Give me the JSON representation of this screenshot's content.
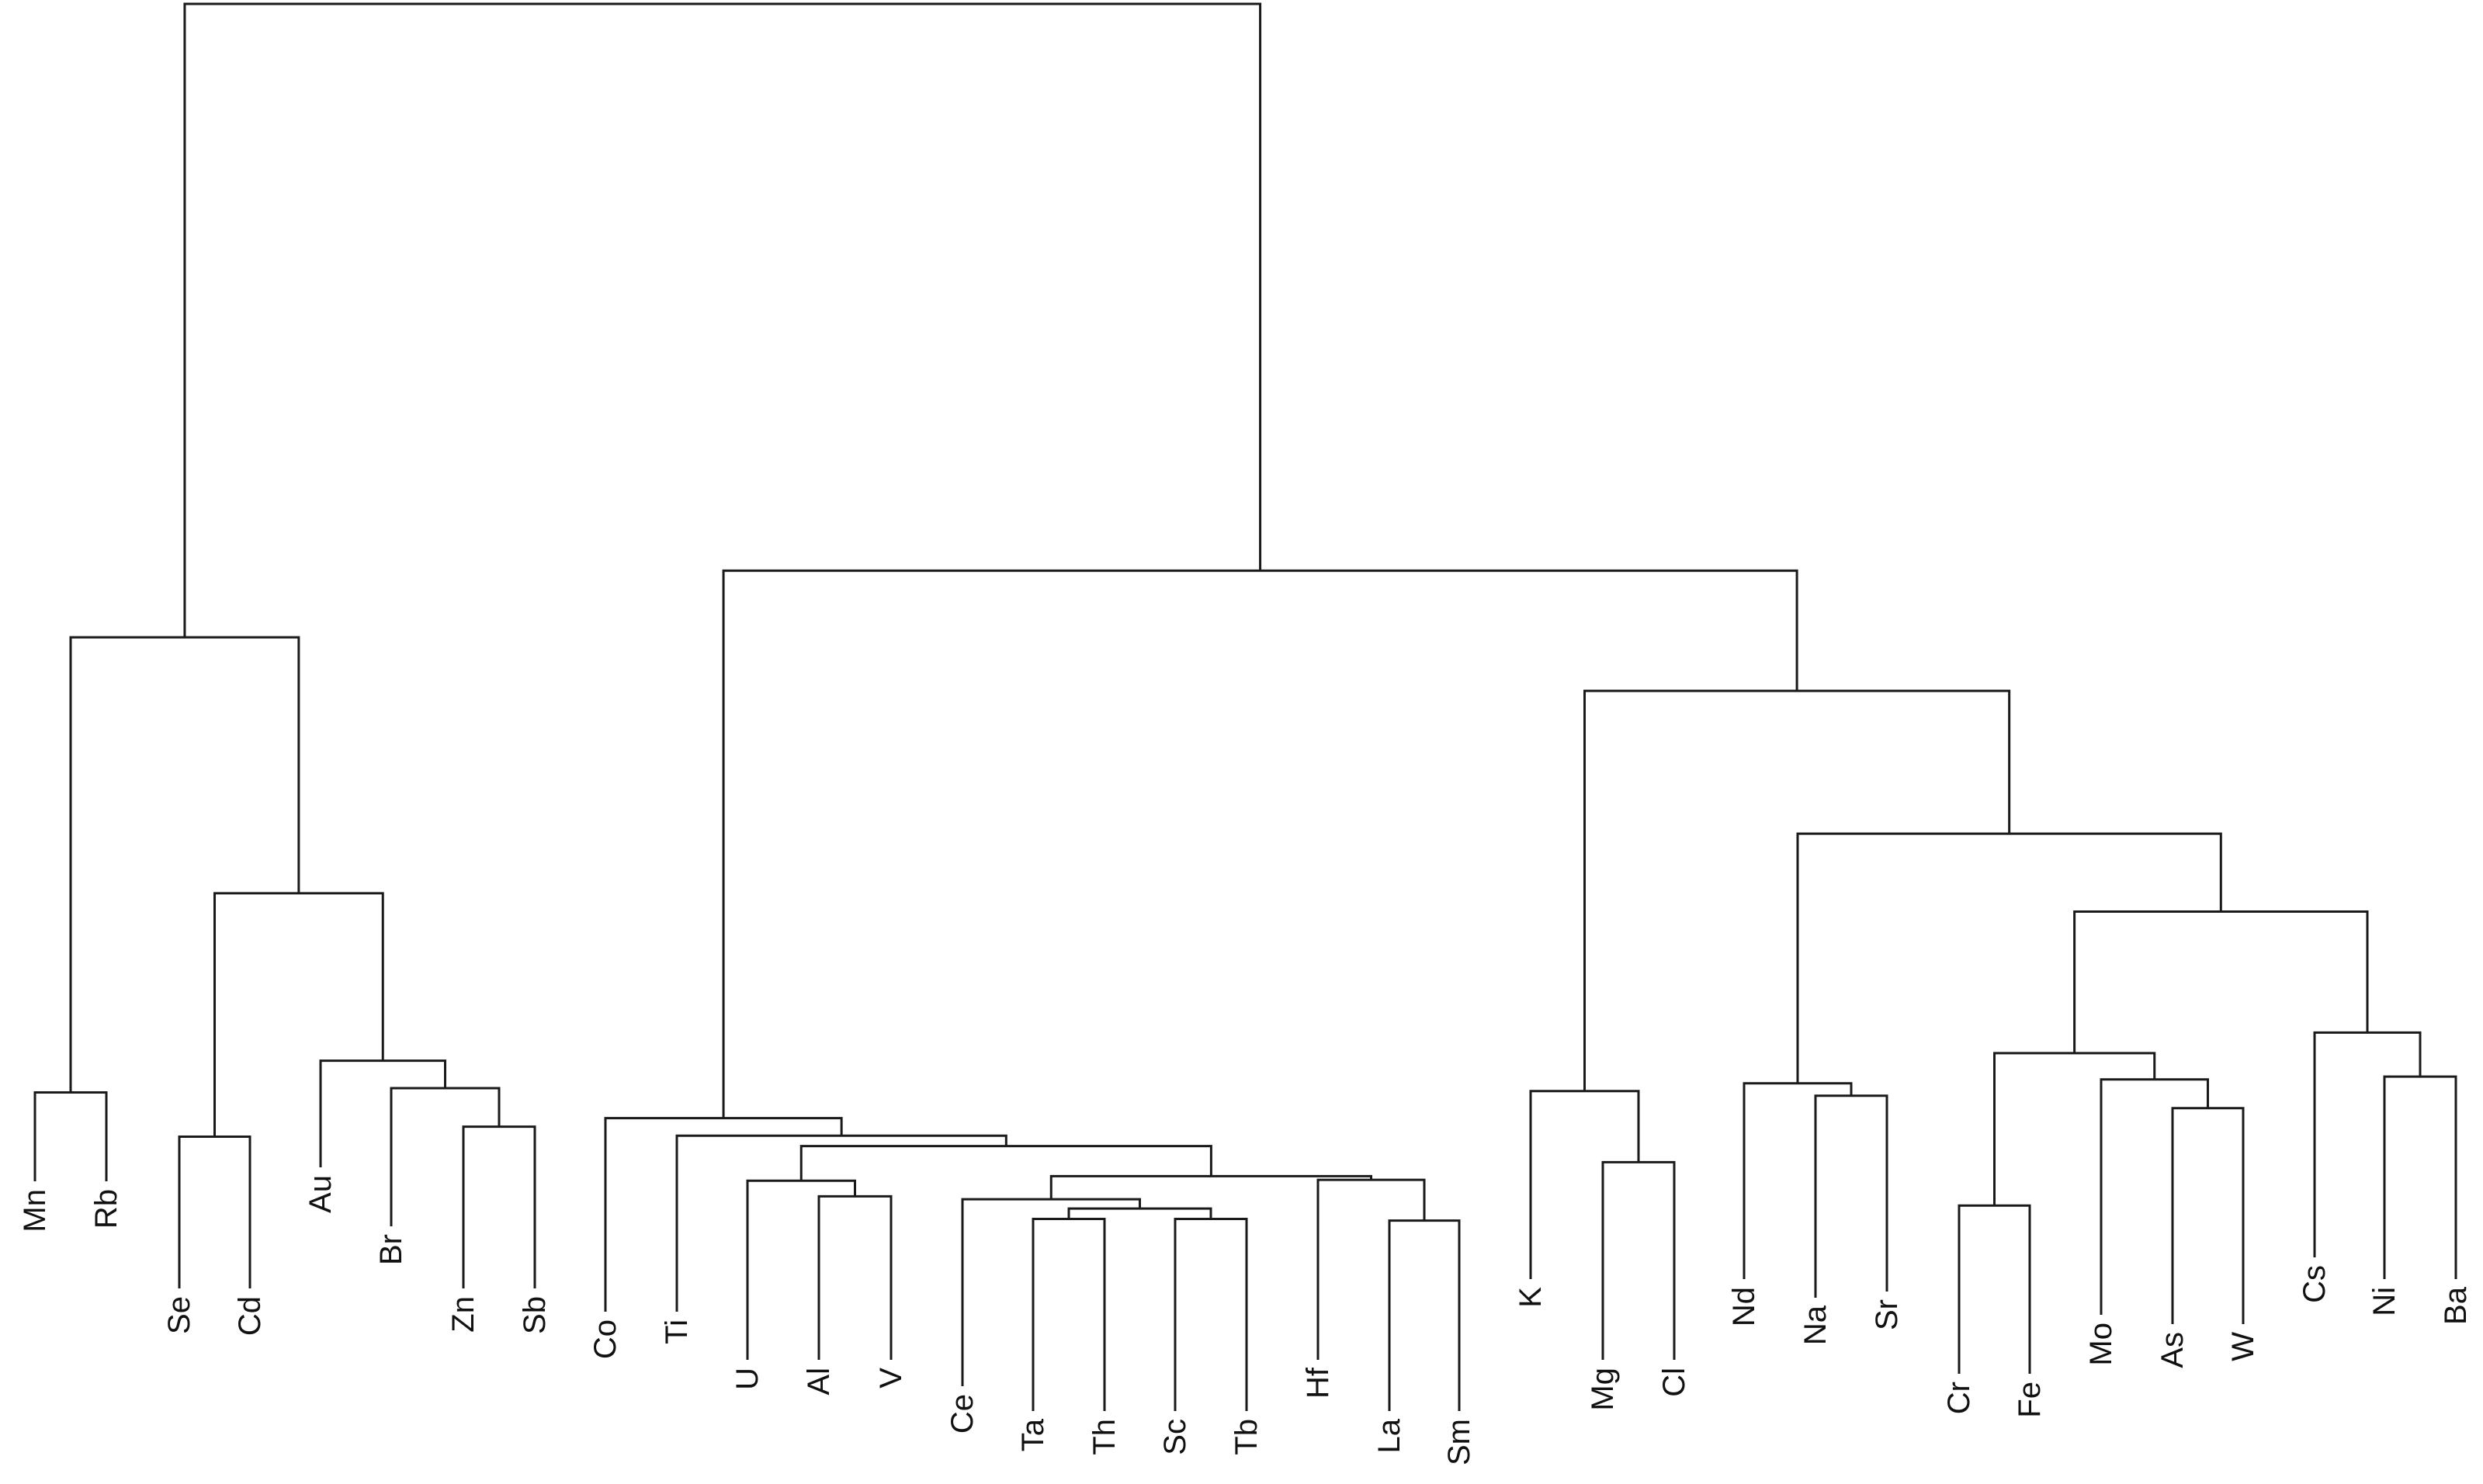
{
  "chart_data": {
    "type": "dendrogram",
    "leaves": [
      "Mn",
      "Rb",
      "Se",
      "Cd",
      "Au",
      "Br",
      "Zn",
      "Sb",
      "Co",
      "Ti",
      "U",
      "Al",
      "V",
      "Ce",
      "Ta",
      "Th",
      "Sc",
      "Tb",
      "Hf",
      "La",
      "Sm",
      "K",
      "Mg",
      "Cl",
      "Nd",
      "Na",
      "Sr",
      "Cr",
      "Fe",
      "Mo",
      "As",
      "W",
      "Cs",
      "Ni",
      "Ba"
    ],
    "merges": [
      {
        "id": "M1",
        "left": "Mn",
        "right": "Rb",
        "height": 0.0657
      },
      {
        "id": "M2",
        "left": "Se",
        "right": "Cd",
        "height": 0.044
      },
      {
        "id": "M3",
        "left": "Zn",
        "right": "Sb",
        "height": 0.0489
      },
      {
        "id": "M4",
        "left": "Br",
        "right": "M3",
        "height": 0.0678
      },
      {
        "id": "M5",
        "left": "Au",
        "right": "M4",
        "height": 0.0813
      },
      {
        "id": "M6",
        "left": "M2",
        "right": "M5",
        "height": 0.1635
      },
      {
        "id": "M7",
        "left": "M1",
        "right": "M6",
        "height": 0.2891
      },
      {
        "id": "M8",
        "left": "Ta",
        "right": "Th",
        "height": 0.0036
      },
      {
        "id": "M9",
        "left": "Sc",
        "right": "Tb",
        "height": 0.0036
      },
      {
        "id": "M10",
        "left": "M8",
        "right": "M9",
        "height": 0.0087
      },
      {
        "id": "M11",
        "left": "Ce",
        "right": "M10",
        "height": 0.0133
      },
      {
        "id": "M12",
        "left": "La",
        "right": "Sm",
        "height": 0.0028
      },
      {
        "id": "M13",
        "left": "Hf",
        "right": "M12",
        "height": 0.0228
      },
      {
        "id": "M14",
        "left": "M11",
        "right": "M13",
        "height": 0.0246
      },
      {
        "id": "M15",
        "left": "Al",
        "right": "V",
        "height": 0.0147
      },
      {
        "id": "M16",
        "left": "U",
        "right": "M15",
        "height": 0.0224
      },
      {
        "id": "M17",
        "left": "M16",
        "right": "M14",
        "height": 0.0394
      },
      {
        "id": "M18",
        "left": "Ti",
        "right": "M17",
        "height": 0.0445
      },
      {
        "id": "M19",
        "left": "Co",
        "right": "M18",
        "height": 0.0531
      },
      {
        "id": "M20",
        "left": "Mg",
        "right": "Cl",
        "height": 0.0315
      },
      {
        "id": "M21",
        "left": "K",
        "right": "M20",
        "height": 0.0664
      },
      {
        "id": "M22",
        "left": "Na",
        "right": "Sr",
        "height": 0.0641
      },
      {
        "id": "M23",
        "left": "Nd",
        "right": "M22",
        "height": 0.0702
      },
      {
        "id": "M24",
        "left": "Cr",
        "right": "Fe",
        "height": 0.0102
      },
      {
        "id": "M25",
        "left": "As",
        "right": "W",
        "height": 0.058
      },
      {
        "id": "M26",
        "left": "Mo",
        "right": "M25",
        "height": 0.0721
      },
      {
        "id": "M27",
        "left": "M24",
        "right": "M26",
        "height": 0.085
      },
      {
        "id": "M28",
        "left": "Ni",
        "right": "Ba",
        "height": 0.0735
      },
      {
        "id": "M29",
        "left": "Cs",
        "right": "M28",
        "height": 0.0951
      },
      {
        "id": "M30",
        "left": "M27",
        "right": "M29",
        "height": 0.1545
      },
      {
        "id": "M31",
        "left": "M23",
        "right": "M30",
        "height": 0.1927
      },
      {
        "id": "M32",
        "left": "M21",
        "right": "M31",
        "height": 0.2628
      },
      {
        "id": "M33",
        "left": "M19",
        "right": "M32",
        "height": 0.3218
      },
      {
        "id": "M34",
        "left": "M7",
        "right": "M33",
        "height": 0.6
      }
    ]
  }
}
